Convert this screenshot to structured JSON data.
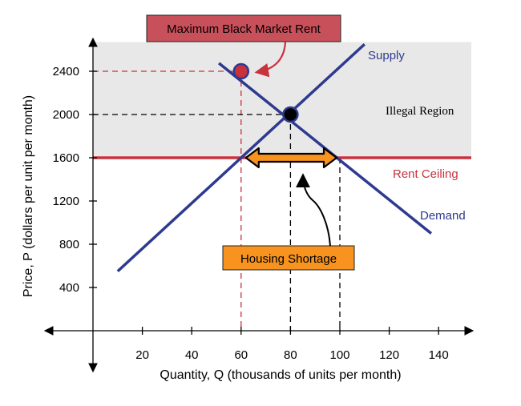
{
  "chart_data": {
    "type": "line",
    "title": "",
    "xlabel": "Quantity, Q  (thousands of units per month)",
    "ylabel": "Price, P (dollars per unit per month)",
    "x_ticks": [
      "20",
      "40",
      "60",
      "80",
      "100",
      "120",
      "140"
    ],
    "y_ticks": [
      "400",
      "800",
      "1200",
      "1600",
      "2000",
      "2400"
    ],
    "xlim": [
      -20,
      150
    ],
    "ylim": [
      -150,
      2700
    ],
    "grid": false,
    "series": [
      {
        "name": "Supply",
        "color": "#2e3a8f",
        "x": [
          10,
          110
        ],
        "y": [
          550,
          2650
        ]
      },
      {
        "name": "Demand",
        "color": "#2e3a8f",
        "x": [
          51,
          137
        ],
        "y": [
          2475,
          900
        ]
      }
    ],
    "rent_ceiling": {
      "label": "Rent Ceiling",
      "y": 1600,
      "color": "#c8323c"
    },
    "equilibrium": {
      "x": 80,
      "y": 2000
    },
    "black_market_point": {
      "x": 60,
      "y": 2400,
      "color": "#c8323c"
    },
    "quantity_supplied": 60,
    "quantity_demanded": 100,
    "annotations": {
      "max_black_market": "Maximum Black Market Rent",
      "illegal_region": "Illegal Region",
      "housing_shortage": "Housing Shortage"
    },
    "colors": {
      "region_fill": "#e8e8e8",
      "orange": "#f7931e",
      "red_box": "#c8505a",
      "navy": "#2e3a8f"
    }
  }
}
